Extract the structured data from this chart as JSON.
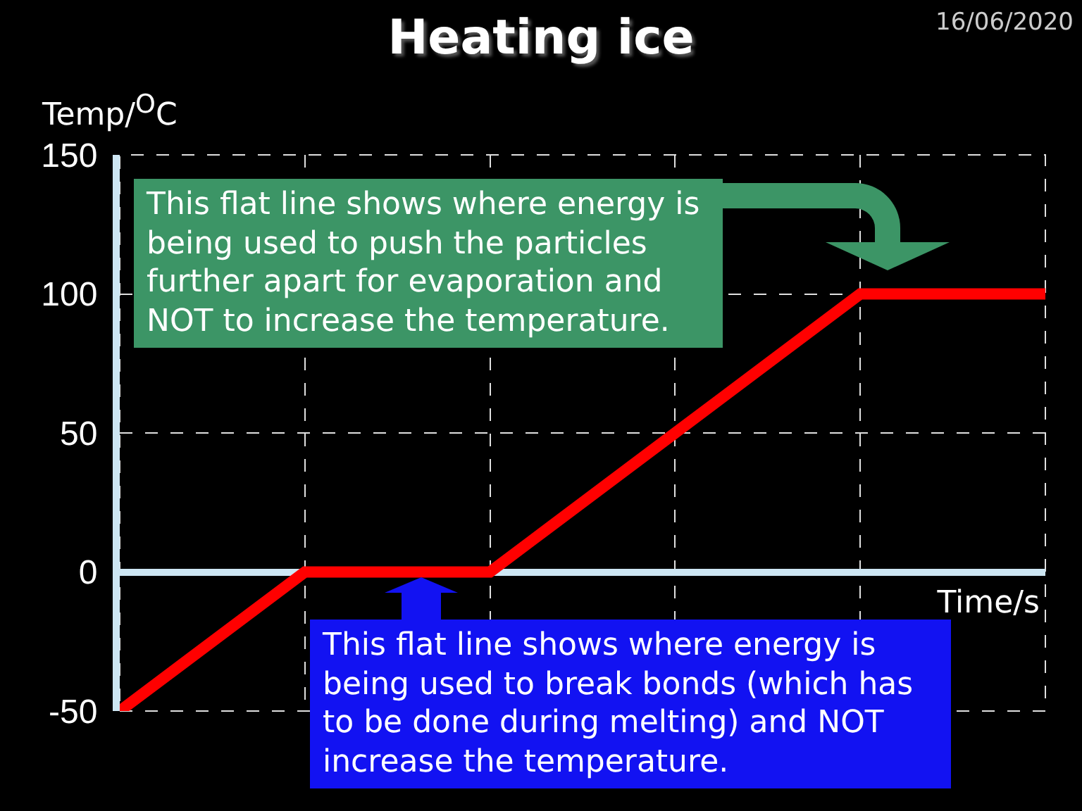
{
  "chart_data": {
    "type": "line",
    "title": "Heating ice",
    "ylabel": "Temp/$^{O}$C",
    "xlabel": "Time/s",
    "annotations": [
      "16/06/2020",
      "This flat line shows where energy is being used to push the particles further apart for evaporation and NOT to increase the temperature.",
      "This flat line shows where energy is being used to break bonds (which has to be done during melting) and NOT increase the temperature."
    ],
    "categories": [
      null,
      null,
      null,
      null,
      null,
      null
    ],
    "values": [
      -50,
      0,
      0,
      50,
      100,
      100
    ],
    "color": "#ff0000",
    "ylim": [
      -50,
      150
    ],
    "yticks": [
      -50,
      0,
      50,
      100,
      150
    ],
    "grid": true,
    "tick_labels": "y",
    "line_style": "solid"
  }
}
